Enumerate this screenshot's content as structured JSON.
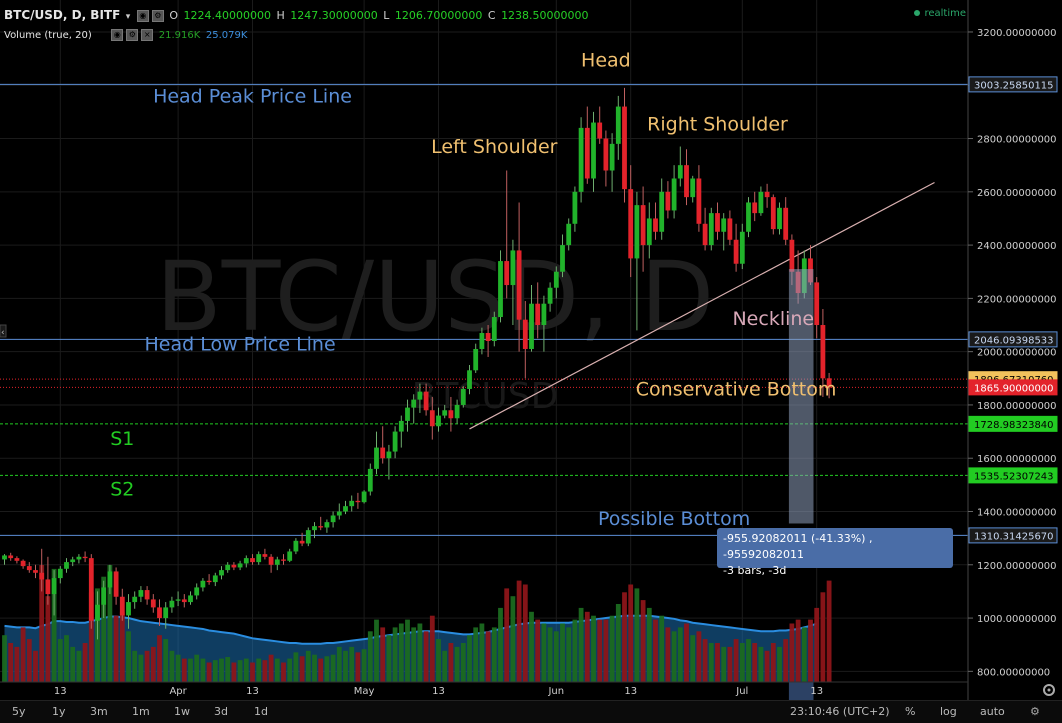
{
  "legend": {
    "symbol": "BTC/USD, D, BITF",
    "o_label": "O",
    "o_value": "1224.40000000",
    "h_label": "H",
    "h_value": "1247.30000000",
    "l_label": "L",
    "l_value": "1206.70000000",
    "c_label": "C",
    "c_value": "1238.50000000",
    "volume_name": "Volume (true, 20)",
    "vol_value1": "21.916K",
    "vol_value2": "25.079K",
    "realtime": "realtime"
  },
  "colors": {
    "up": "#21b32b",
    "down": "#e3232b",
    "background": "#000000",
    "annotation_blue": "#5b8ed6",
    "annotation_orange": "#f0c070",
    "annotation_green": "#22cc22",
    "neckline": "#d9b0b0",
    "vol_ma_fill": "#1c6fb0"
  },
  "chart_data": {
    "type": "candlestick",
    "watermark": "BTC/USD, D",
    "watermark_sub": "BTCUSD",
    "ylim": [
      760,
      3320
    ],
    "y_ticks": [
      800,
      1000,
      1200,
      1400,
      1600,
      1800,
      2000,
      2200,
      2400,
      2600,
      2800,
      3000,
      3200
    ],
    "y_tick_labels": [
      "800.00000000",
      "1000.00000000",
      "1200.00000000",
      "1400.00000000",
      "1600.00000000",
      "1800.00000000",
      "2000.00000000",
      "2200.00000000",
      "2400.00000000",
      "2600.00000000",
      "2800.00000000",
      "3000.00000000",
      "3200.00000000"
    ],
    "x_ticks": [
      {
        "label": "13",
        "bar": 9
      },
      {
        "label": "Apr",
        "bar": 28
      },
      {
        "label": "13",
        "bar": 40
      },
      {
        "label": "May",
        "bar": 58
      },
      {
        "label": "13",
        "bar": 70
      },
      {
        "label": "Jun",
        "bar": 89
      },
      {
        "label": "13",
        "bar": 101
      },
      {
        "label": "Jul",
        "bar": 119
      },
      {
        "label": "13",
        "bar": 131
      }
    ],
    "candles": [
      [
        1220,
        1240,
        1200,
        1235,
        60
      ],
      [
        1235,
        1245,
        1215,
        1225,
        50
      ],
      [
        1225,
        1232,
        1205,
        1215,
        45
      ],
      [
        1215,
        1220,
        1185,
        1195,
        70
      ],
      [
        1195,
        1210,
        1170,
        1180,
        55
      ],
      [
        1180,
        1200,
        1150,
        1170,
        40
      ],
      [
        1170,
        1260,
        1100,
        1145,
        150
      ],
      [
        1145,
        1230,
        1050,
        1090,
        110
      ],
      [
        1090,
        1180,
        1010,
        1150,
        145
      ],
      [
        1150,
        1195,
        1130,
        1185,
        55
      ],
      [
        1185,
        1225,
        1170,
        1210,
        60
      ],
      [
        1210,
        1230,
        1195,
        1220,
        45
      ],
      [
        1220,
        1240,
        1205,
        1230,
        40
      ],
      [
        1230,
        1250,
        1210,
        1225,
        50
      ],
      [
        1225,
        1240,
        960,
        990,
        115
      ],
      [
        990,
        1100,
        920,
        1050,
        120
      ],
      [
        1050,
        1140,
        1000,
        1115,
        135
      ],
      [
        1115,
        1200,
        1090,
        1175,
        150
      ],
      [
        1175,
        1190,
        1050,
        1080,
        85
      ],
      [
        1080,
        1110,
        990,
        1010,
        90
      ],
      [
        1010,
        1090,
        960,
        1060,
        65
      ],
      [
        1060,
        1100,
        1035,
        1080,
        40
      ],
      [
        1080,
        1120,
        1060,
        1105,
        35
      ],
      [
        1105,
        1120,
        1050,
        1070,
        40
      ],
      [
        1070,
        1090,
        1020,
        1040,
        45
      ],
      [
        1040,
        1070,
        970,
        1000,
        60
      ],
      [
        1000,
        1060,
        960,
        1040,
        55
      ],
      [
        1040,
        1080,
        1020,
        1065,
        40
      ],
      [
        1065,
        1100,
        1045,
        1070,
        35
      ],
      [
        1070,
        1090,
        1040,
        1060,
        30
      ],
      [
        1060,
        1100,
        1050,
        1085,
        30
      ],
      [
        1085,
        1130,
        1070,
        1115,
        35
      ],
      [
        1115,
        1150,
        1100,
        1140,
        30
      ],
      [
        1140,
        1165,
        1125,
        1135,
        25
      ],
      [
        1135,
        1170,
        1120,
        1160,
        28
      ],
      [
        1160,
        1195,
        1145,
        1180,
        30
      ],
      [
        1180,
        1210,
        1170,
        1200,
        32
      ],
      [
        1200,
        1210,
        1180,
        1190,
        25
      ],
      [
        1190,
        1215,
        1180,
        1205,
        28
      ],
      [
        1205,
        1235,
        1190,
        1225,
        30
      ],
      [
        1225,
        1240,
        1200,
        1210,
        25
      ],
      [
        1210,
        1250,
        1200,
        1240,
        30
      ],
      [
        1240,
        1260,
        1220,
        1230,
        28
      ],
      [
        1230,
        1240,
        1170,
        1200,
        35
      ],
      [
        1200,
        1230,
        1180,
        1220,
        30
      ],
      [
        1220,
        1240,
        1200,
        1215,
        25
      ],
      [
        1215,
        1260,
        1210,
        1250,
        30
      ],
      [
        1250,
        1300,
        1240,
        1290,
        38
      ],
      [
        1290,
        1320,
        1270,
        1280,
        33
      ],
      [
        1280,
        1340,
        1270,
        1330,
        40
      ],
      [
        1330,
        1360,
        1300,
        1345,
        35
      ],
      [
        1345,
        1380,
        1330,
        1340,
        30
      ],
      [
        1340,
        1370,
        1320,
        1360,
        33
      ],
      [
        1360,
        1400,
        1340,
        1385,
        35
      ],
      [
        1385,
        1430,
        1370,
        1400,
        45
      ],
      [
        1400,
        1440,
        1390,
        1420,
        40
      ],
      [
        1420,
        1460,
        1400,
        1440,
        45
      ],
      [
        1440,
        1470,
        1410,
        1435,
        38
      ],
      [
        1435,
        1480,
        1430,
        1475,
        42
      ],
      [
        1475,
        1580,
        1460,
        1560,
        65
      ],
      [
        1560,
        1700,
        1540,
        1640,
        80
      ],
      [
        1640,
        1720,
        1580,
        1600,
        70
      ],
      [
        1600,
        1650,
        1520,
        1625,
        60
      ],
      [
        1625,
        1720,
        1600,
        1700,
        70
      ],
      [
        1700,
        1760,
        1640,
        1740,
        75
      ],
      [
        1740,
        1820,
        1700,
        1790,
        80
      ],
      [
        1790,
        1840,
        1730,
        1820,
        70
      ],
      [
        1820,
        1880,
        1770,
        1850,
        75
      ],
      [
        1850,
        1880,
        1760,
        1780,
        65
      ],
      [
        1780,
        1830,
        1670,
        1720,
        85
      ],
      [
        1720,
        1790,
        1700,
        1760,
        55
      ],
      [
        1760,
        1800,
        1750,
        1780,
        40
      ],
      [
        1780,
        1830,
        1700,
        1750,
        50
      ],
      [
        1750,
        1820,
        1730,
        1800,
        45
      ],
      [
        1800,
        1870,
        1790,
        1860,
        50
      ],
      [
        1860,
        1950,
        1840,
        1930,
        60
      ],
      [
        1930,
        2030,
        1920,
        2010,
        70
      ],
      [
        2010,
        2090,
        1990,
        2070,
        75
      ],
      [
        2070,
        2100,
        1980,
        2040,
        65
      ],
      [
        2040,
        2150,
        2020,
        2130,
        70
      ],
      [
        2130,
        2380,
        2110,
        2340,
        95
      ],
      [
        2340,
        2680,
        2200,
        2250,
        120
      ],
      [
        2250,
        2420,
        2100,
        2380,
        110
      ],
      [
        2380,
        2560,
        2000,
        2120,
        130
      ],
      [
        2120,
        2190,
        1900,
        2010,
        125
      ],
      [
        2010,
        2250,
        2000,
        2180,
        90
      ],
      [
        2180,
        2260,
        2050,
        2100,
        80
      ],
      [
        2100,
        2210,
        2000,
        2180,
        75
      ],
      [
        2180,
        2260,
        2150,
        2240,
        70
      ],
      [
        2240,
        2320,
        2200,
        2300,
        65
      ],
      [
        2300,
        2440,
        2280,
        2400,
        75
      ],
      [
        2400,
        2500,
        2380,
        2480,
        70
      ],
      [
        2480,
        2620,
        2450,
        2600,
        80
      ],
      [
        2600,
        2880,
        2560,
        2840,
        95
      ],
      [
        2840,
        2920,
        2630,
        2650,
        90
      ],
      [
        2650,
        2900,
        2600,
        2860,
        85
      ],
      [
        2860,
        2920,
        2780,
        2800,
        80
      ],
      [
        2800,
        2830,
        2620,
        2680,
        80
      ],
      [
        2680,
        2820,
        2600,
        2780,
        85
      ],
      [
        2780,
        2960,
        2720,
        2920,
        100
      ],
      [
        2920,
        2990,
        2560,
        2610,
        115
      ],
      [
        2610,
        2700,
        2280,
        2350,
        125
      ],
      [
        2350,
        2600,
        2080,
        2550,
        120
      ],
      [
        2550,
        2620,
        2300,
        2400,
        105
      ],
      [
        2400,
        2560,
        2350,
        2500,
        95
      ],
      [
        2500,
        2560,
        2420,
        2450,
        80
      ],
      [
        2450,
        2650,
        2420,
        2600,
        85
      ],
      [
        2600,
        2640,
        2500,
        2530,
        70
      ],
      [
        2530,
        2700,
        2500,
        2650,
        65
      ],
      [
        2650,
        2770,
        2620,
        2700,
        70
      ],
      [
        2700,
        2760,
        2550,
        2580,
        75
      ],
      [
        2580,
        2660,
        2560,
        2650,
        60
      ],
      [
        2650,
        2700,
        2450,
        2480,
        65
      ],
      [
        2480,
        2540,
        2380,
        2400,
        55
      ],
      [
        2400,
        2540,
        2380,
        2520,
        50
      ],
      [
        2520,
        2560,
        2420,
        2450,
        50
      ],
      [
        2450,
        2520,
        2380,
        2500,
        45
      ],
      [
        2500,
        2530,
        2400,
        2420,
        45
      ],
      [
        2420,
        2480,
        2300,
        2330,
        55
      ],
      [
        2330,
        2480,
        2310,
        2450,
        50
      ],
      [
        2450,
        2580,
        2430,
        2560,
        55
      ],
      [
        2560,
        2600,
        2490,
        2520,
        50
      ],
      [
        2520,
        2620,
        2510,
        2600,
        45
      ],
      [
        2600,
        2630,
        2540,
        2580,
        40
      ],
      [
        2580,
        2590,
        2440,
        2460,
        50
      ],
      [
        2460,
        2560,
        2440,
        2540,
        45
      ],
      [
        2540,
        2580,
        2400,
        2420,
        55
      ],
      [
        2420,
        2440,
        2250,
        2300,
        75
      ],
      [
        2300,
        2380,
        2180,
        2220,
        80
      ],
      [
        2220,
        2380,
        2200,
        2350,
        70
      ],
      [
        2350,
        2400,
        2250,
        2260,
        80
      ],
      [
        2260,
        2280,
        2050,
        2100,
        95
      ],
      [
        2100,
        2160,
        1830,
        1900,
        115
      ],
      [
        1900,
        1920,
        1825,
        1865,
        130
      ]
    ],
    "vol_ma": [
      72,
      71,
      70,
      70,
      70,
      69,
      72,
      74,
      78,
      78,
      77,
      77,
      76,
      76,
      78,
      80,
      82,
      84,
      84,
      83,
      82,
      80,
      78,
      77,
      76,
      75,
      74,
      73,
      72,
      71,
      70,
      69,
      68,
      66,
      65,
      64,
      63,
      62,
      60,
      58,
      56,
      55,
      54,
      53,
      52,
      51,
      50,
      50,
      49,
      49,
      49,
      49,
      50,
      50,
      51,
      52,
      53,
      54,
      55,
      56,
      58,
      59,
      60,
      61,
      62,
      63,
      64,
      65,
      65,
      65,
      65,
      64,
      63,
      62,
      61,
      61,
      62,
      63,
      64,
      66,
      68,
      70,
      72,
      74,
      75,
      76,
      76,
      76,
      76,
      76,
      76,
      76,
      77,
      78,
      79,
      80,
      81,
      82,
      83,
      84,
      85,
      85,
      85,
      85,
      85,
      84,
      83,
      82,
      81,
      79,
      78,
      76,
      75,
      74,
      73,
      72,
      71,
      70,
      69,
      68,
      67,
      66,
      65,
      65,
      65,
      66,
      66,
      67,
      68,
      70,
      72,
      75
    ],
    "horizontal_lines": [
      {
        "price": 3003.2585,
        "label": "3003.25850115",
        "color": "#5b8ed6",
        "style": "solid",
        "tag": "blue"
      },
      {
        "price": 2046.09398533,
        "label": "2046.09398533",
        "color": "#5b8ed6",
        "style": "solid",
        "tag": "blue"
      },
      {
        "price": 1896.6731076,
        "label": "1896.67310760",
        "color": "#e3232b",
        "style": "dotted",
        "tag": "orange"
      },
      {
        "price": 1865.9,
        "label": "1865.90000000",
        "color": "#e3232b",
        "style": "dotted",
        "tag": "red"
      },
      {
        "price": 1728.9832384,
        "label": "1728.98323840",
        "color": "#22cc22",
        "style": "dashed",
        "tag": "green"
      },
      {
        "price": 1535.52307243,
        "label": "1535.52307243",
        "color": "#22cc22",
        "style": "dashed",
        "tag": "green"
      },
      {
        "price": 1310.3142567,
        "label": "1310.31425670",
        "color": "#5b8ed6",
        "style": "solid",
        "tag": "blue"
      }
    ],
    "neckline": {
      "from": {
        "bar": 75,
        "price": 1710
      },
      "to": {
        "bar": 150,
        "price": 2635
      }
    },
    "measure_box": {
      "from_bar": 127,
      "to_bar": 130,
      "top_price": 2310,
      "bottom_price": 1355
    },
    "annotations": [
      {
        "text": "Head",
        "bar": 97,
        "price": 3070,
        "color": "orange"
      },
      {
        "text": "Head Peak Price Line",
        "bar": 40,
        "price": 2935,
        "color": "blue"
      },
      {
        "text": "Right Shoulder",
        "bar": 115,
        "price": 2830,
        "color": "orange"
      },
      {
        "text": "Left Shoulder",
        "bar": 79,
        "price": 2745,
        "color": "orange"
      },
      {
        "text": "Neckline",
        "bar": 124,
        "price": 2100,
        "color": "neck"
      },
      {
        "text": "Head Low Price Line",
        "bar": 38,
        "price": 2005,
        "color": "blue"
      },
      {
        "text": "Conservative Bottom",
        "bar": 118,
        "price": 1835,
        "color": "orange"
      },
      {
        "text": "S1",
        "bar": 19,
        "price": 1650,
        "color": "green"
      },
      {
        "text": "S2",
        "bar": 19,
        "price": 1460,
        "color": "green"
      },
      {
        "text": "Possible Bottom",
        "bar": 108,
        "price": 1350,
        "color": "blue"
      }
    ]
  },
  "tooltip": {
    "line1": "-955.92082011 (-41.33%) , -95592082011",
    "line2": "-3 bars, -3d"
  },
  "bottombar": {
    "timeframes": [
      "5y",
      "1y",
      "3m",
      "1m",
      "1w",
      "3d",
      "1d"
    ],
    "clock": "23:10:46 (UTC+2)",
    "percent": "%",
    "log": "log",
    "auto": "auto"
  }
}
